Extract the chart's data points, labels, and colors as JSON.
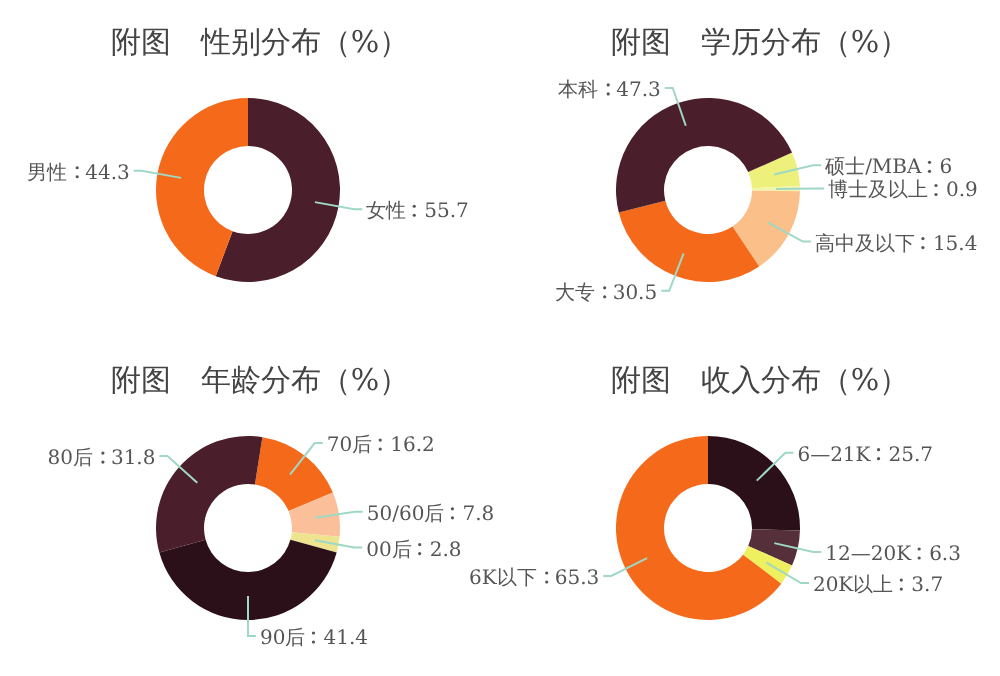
{
  "chart_data": [
    {
      "type": "donut",
      "title": "附图　性别分布（%）",
      "categories": [
        "女性",
        "男性"
      ],
      "values": [
        55.7,
        44.3
      ],
      "colors": [
        "#4a1e2a",
        "#f5691a"
      ],
      "data_labels": true
    },
    {
      "type": "donut",
      "title": "附图　学历分布（%）",
      "categories": [
        "硕士/MBA",
        "博士及以上",
        "高中及以下",
        "大专",
        "本科"
      ],
      "values": [
        6,
        0.9,
        15.4,
        30.5,
        47.3
      ],
      "colors": [
        "#eef07c",
        "#f3f6a8",
        "#fbbf8a",
        "#f5691a",
        "#4a1e2a"
      ],
      "data_labels": true
    },
    {
      "type": "donut",
      "title": "附图　年龄分布（%）",
      "categories": [
        "70后",
        "50/60后",
        "00后",
        "90后",
        "80后"
      ],
      "values": [
        16.2,
        7.8,
        2.8,
        41.4,
        31.8
      ],
      "colors": [
        "#f5691a",
        "#fbbf9a",
        "#eee490",
        "#2c1019",
        "#4a1e2a"
      ],
      "data_labels": true
    },
    {
      "type": "donut",
      "title": "附图　收入分布（%）",
      "categories": [
        "6—21K",
        "12—20K",
        "20K以上",
        "6K以下"
      ],
      "values": [
        25.7,
        6.3,
        3.7,
        65.3
      ],
      "colors": [
        "#2c1019",
        "#55303a",
        "#eef060",
        "#f5691a"
      ],
      "data_labels": true
    }
  ]
}
